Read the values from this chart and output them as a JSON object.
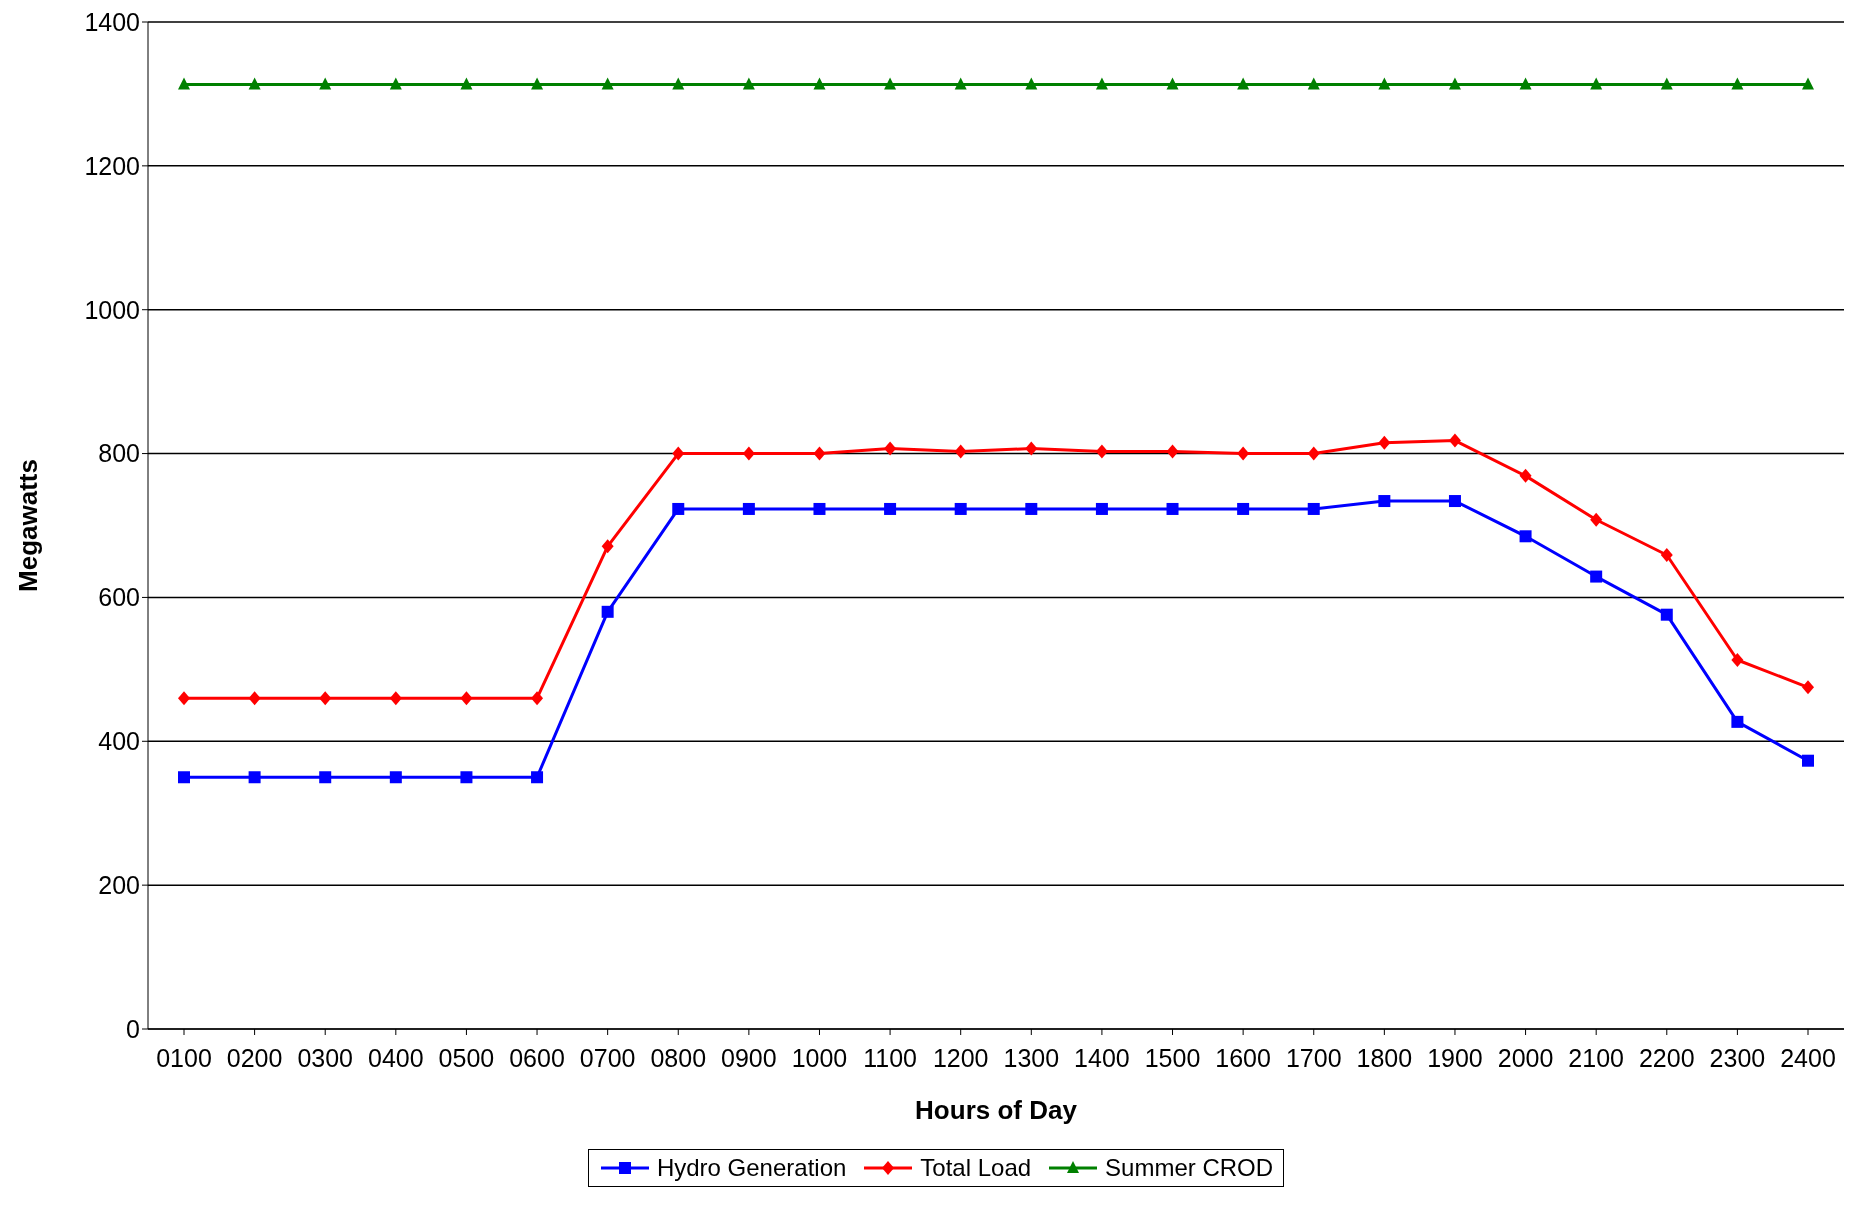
{
  "chart_data": {
    "type": "line",
    "xlabel": "Hours of Day",
    "ylabel": "Megawatts",
    "categories": [
      "0100",
      "0200",
      "0300",
      "0400",
      "0500",
      "0600",
      "0700",
      "0800",
      "0900",
      "1000",
      "1100",
      "1200",
      "1300",
      "1400",
      "1500",
      "1600",
      "1700",
      "1800",
      "1900",
      "2000",
      "2100",
      "2200",
      "2300",
      "2400"
    ],
    "series": [
      {
        "name": "Hydro Generation",
        "color": "#0000ff",
        "marker": "square",
        "values": [
          350,
          350,
          350,
          350,
          350,
          350,
          580,
          723,
          723,
          723,
          723,
          723,
          723,
          723,
          723,
          723,
          723,
          734,
          734,
          685,
          629,
          576,
          427,
          373
        ]
      },
      {
        "name": "Total Load",
        "color": "#ff0000",
        "marker": "diamond",
        "values": [
          460,
          460,
          460,
          460,
          460,
          460,
          671,
          800,
          800,
          800,
          807,
          803,
          807,
          803,
          803,
          800,
          800,
          815,
          818,
          769,
          708,
          659,
          513,
          475
        ]
      },
      {
        "name": "Summer CROD",
        "color": "#008000",
        "marker": "triangle",
        "values": [
          1313,
          1313,
          1313,
          1313,
          1313,
          1313,
          1313,
          1313,
          1313,
          1313,
          1313,
          1313,
          1313,
          1313,
          1313,
          1313,
          1313,
          1313,
          1313,
          1313,
          1313,
          1313,
          1313,
          1313
        ]
      }
    ],
    "ylim": [
      0,
      1400
    ],
    "yticks": [
      0,
      200,
      400,
      600,
      800,
      1000,
      1200,
      1400
    ],
    "grid": "y",
    "legend": "bottom",
    "line_style": "solid"
  }
}
